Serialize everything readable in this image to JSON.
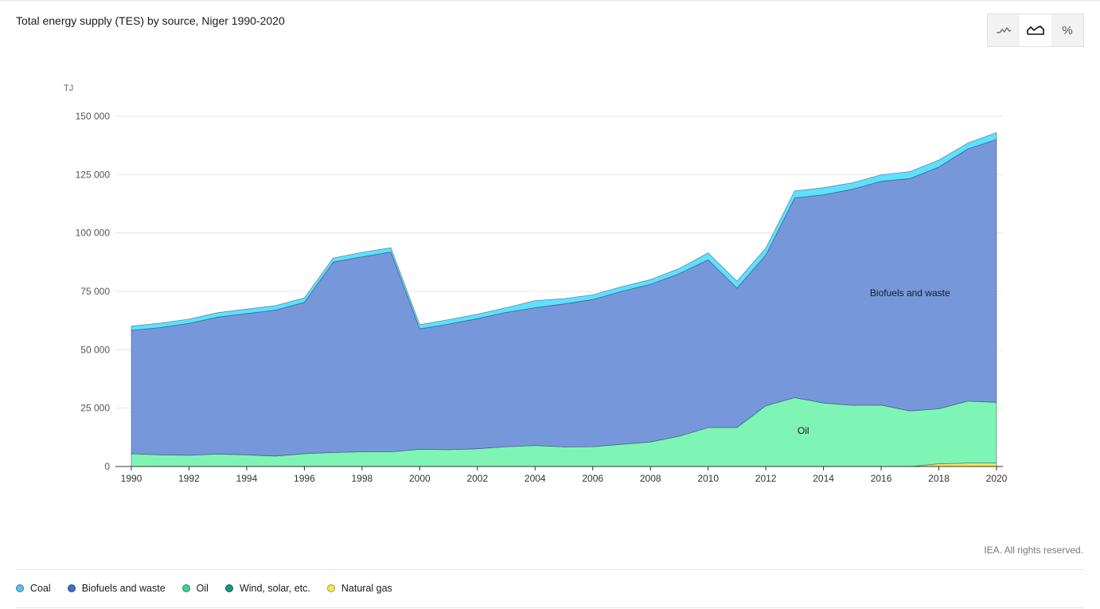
{
  "page": {
    "title": "Total energy supply (TES) by source, Niger 1990-2020",
    "copyright": "IEA. All rights reserved."
  },
  "toolbar": {
    "buttons": [
      {
        "name": "line-chart-icon",
        "active": false
      },
      {
        "name": "area-chart-icon",
        "active": true
      },
      {
        "name": "percent-icon",
        "label": "%",
        "active": false
      }
    ]
  },
  "chart_data": {
    "type": "area",
    "stacked": true,
    "ylabel": "TJ",
    "ylim": [
      0,
      150000
    ],
    "yticks": [
      0,
      25000,
      50000,
      75000,
      100000,
      125000,
      150000
    ],
    "ytick_labels": [
      "0",
      "25 000",
      "50 000",
      "75 000",
      "100 000",
      "125 000",
      "150 000"
    ],
    "xlim": [
      1990,
      2020
    ],
    "xticks": [
      1990,
      1992,
      1994,
      1996,
      1998,
      2000,
      2002,
      2004,
      2006,
      2008,
      2010,
      2012,
      2014,
      2016,
      2018,
      2020
    ],
    "grid": true,
    "x": [
      1990,
      1991,
      1992,
      1993,
      1994,
      1995,
      1996,
      1997,
      1998,
      1999,
      2000,
      2001,
      2002,
      2003,
      2004,
      2005,
      2006,
      2007,
      2008,
      2009,
      2010,
      2011,
      2012,
      2013,
      2014,
      2015,
      2016,
      2017,
      2018,
      2019,
      2020
    ],
    "series": [
      {
        "name": "Natural gas",
        "color": "#f5e35a",
        "values": [
          0,
          0,
          0,
          0,
          0,
          0,
          0,
          0,
          0,
          0,
          0,
          0,
          0,
          0,
          0,
          0,
          0,
          0,
          0,
          0,
          0,
          0,
          0,
          0,
          0,
          0,
          0,
          0,
          1200,
          1500,
          1500
        ]
      },
      {
        "name": "Wind, solar, etc.",
        "color": "#1aa39a",
        "values": [
          0,
          0,
          0,
          0,
          0,
          0,
          0,
          0,
          0,
          0,
          0,
          0,
          0,
          0,
          0,
          0,
          0,
          0,
          0,
          0,
          0,
          0,
          0,
          0,
          0,
          0,
          0,
          0,
          0,
          0,
          0
        ]
      },
      {
        "name": "Oil",
        "color": "#7ef5b5",
        "values": [
          5500,
          5000,
          4800,
          5400,
          5000,
          4500,
          5500,
          6000,
          6300,
          6300,
          7400,
          7200,
          7600,
          8500,
          9000,
          8400,
          8500,
          9500,
          10500,
          13000,
          16700,
          16700,
          26000,
          29500,
          27200,
          26200,
          26300,
          23800,
          23500,
          26500,
          26000
        ]
      },
      {
        "name": "Biofuels and waste",
        "color": "#7698db",
        "values": [
          52800,
          54500,
          56500,
          58600,
          60500,
          62500,
          64800,
          81500,
          83500,
          85500,
          51500,
          53800,
          55700,
          57500,
          59000,
          61200,
          63000,
          65500,
          67500,
          69600,
          71800,
          59700,
          64500,
          85500,
          89200,
          92500,
          95800,
          99500,
          103500,
          108000,
          112500
        ]
      },
      {
        "name": "Coal",
        "color": "#5ee0ff",
        "values": [
          1800,
          1900,
          1800,
          1900,
          1900,
          1900,
          1900,
          1800,
          1900,
          1900,
          1800,
          1900,
          1900,
          2000,
          3000,
          2300,
          2000,
          2000,
          2000,
          2200,
          3000,
          3000,
          3000,
          3000,
          3000,
          2800,
          2800,
          3000,
          3000,
          2500,
          3000
        ]
      }
    ],
    "annotations": [
      {
        "text": "Biofuels and waste",
        "x": 2017,
        "y": 73000
      },
      {
        "text": "Oil",
        "x": 2013.3,
        "y": 14000
      }
    ],
    "legend_position": "bottom-left",
    "legend": [
      {
        "label": "Coal",
        "color": "#56c4ec"
      },
      {
        "label": "Biofuels and waste",
        "color": "#3e6ec7"
      },
      {
        "label": "Oil",
        "color": "#3ed28d"
      },
      {
        "label": "Wind, solar, etc.",
        "color": "#16948c"
      },
      {
        "label": "Natural gas",
        "color": "#f7e45a"
      }
    ]
  }
}
